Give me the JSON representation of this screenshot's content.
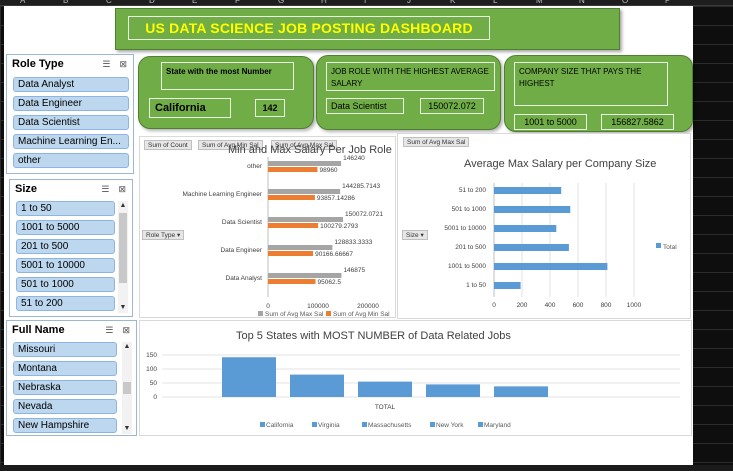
{
  "header": {
    "title": "US DATA SCIENCE JOB POSTING DASHBOARD"
  },
  "spreadsheet": {
    "columns": [
      "A",
      "B",
      "C",
      "D",
      "E",
      "F",
      "G",
      "H",
      "I",
      "J",
      "K",
      "L",
      "M",
      "N",
      "O",
      "P"
    ]
  },
  "kpis": {
    "state": {
      "label": "State with the most Number",
      "name": "California",
      "value": "142"
    },
    "role": {
      "label": "JOB ROLE WITH THE HIGHEST AVERAGE SALARY",
      "name": "Data Scientist",
      "value": "150072.072"
    },
    "company": {
      "label": "COMPANY SIZE THAT PAYS THE HIGHEST",
      "name": "1001 to 5000",
      "value": "156827.5862"
    }
  },
  "slicers": {
    "role_type": {
      "title": "Role Type",
      "items": [
        "Data Analyst",
        "Data Engineer",
        "Data Scientist",
        "Machine Learning En...",
        "other"
      ]
    },
    "size": {
      "title": "Size",
      "items": [
        "1 to 50",
        "1001 to 5000",
        "201 to 500",
        "5001 to 10000",
        "501 to 1000",
        "51 to 200"
      ]
    },
    "full_name": {
      "title": "Full Name",
      "items": [
        "Missouri",
        "Montana",
        "Nebraska",
        "Nevada",
        "New Hampshire"
      ]
    }
  },
  "chart_data": [
    {
      "type": "bar",
      "title": "Min and Max Salary Per Job Role",
      "field_buttons": [
        "Sum of Count",
        "Sum of Avg Min Sal",
        "Sum of Avg Max Sal"
      ],
      "axis_button": "Role Type",
      "categories": [
        "other",
        "Machine Learning Engineer",
        "Data Scientist",
        "Data Engineer",
        "Data Analyst"
      ],
      "series": [
        {
          "name": "Sum of Avg Max Sal",
          "color": "#a5a5a5",
          "values": [
            146240,
            144285.7143,
            150072.0721,
            128833.3333,
            146875
          ]
        },
        {
          "name": "Sum of Avg Min Sal",
          "color": "#ed7d31",
          "values": [
            98960,
            93857.14286,
            100279.2793,
            90166.66667,
            95062.5
          ]
        }
      ],
      "data_labels_max": [
        "146240",
        "144285.7143",
        "150072.0721",
        "128833.3333",
        "146875"
      ],
      "data_labels_min": [
        "98960",
        "93857.14286",
        "100279.2793",
        "90166.66667",
        "95062.5"
      ],
      "x_ticks": [
        "0",
        "100000",
        "200000"
      ],
      "xlim": [
        0,
        200000
      ]
    },
    {
      "type": "bar",
      "title": "Average Max Salary per Company Size",
      "field_buttons": [
        "Sum of Avg Max Sal"
      ],
      "axis_button": "Size",
      "categories": [
        "51 to 200",
        "501 to 1000",
        "5001 to 10000",
        "201 to 500",
        "1001 to 5000",
        "1 to 50"
      ],
      "series": [
        {
          "name": "Total",
          "color": "#5b9bd5",
          "values": [
            480,
            545,
            445,
            535,
            810,
            190
          ]
        }
      ],
      "x_ticks": [
        "0",
        "200",
        "400",
        "600",
        "800",
        "1000"
      ],
      "xlim": [
        0,
        1000
      ]
    },
    {
      "type": "bar",
      "title": "Top 5 States with MOST NUMBER of Data Related Jobs",
      "categories": [
        "TOTAL"
      ],
      "series": [
        {
          "name": "California",
          "color": "#5b9bd5",
          "values": [
            142
          ]
        },
        {
          "name": "Virginia",
          "color": "#5b9bd5",
          "values": [
            80
          ]
        },
        {
          "name": "Massachusetts",
          "color": "#5b9bd5",
          "values": [
            55
          ]
        },
        {
          "name": "New York",
          "color": "#5b9bd5",
          "values": [
            45
          ]
        },
        {
          "name": "Maryland",
          "color": "#5b9bd5",
          "values": [
            38
          ]
        }
      ],
      "y_ticks": [
        "0",
        "50",
        "100",
        "150"
      ],
      "ylim": [
        0,
        150
      ]
    }
  ],
  "colors": {
    "accent_green": "#70ad47",
    "title_text": "#ffff00",
    "slicer_item": "#bdd7ee",
    "bar_blue": "#5b9bd5",
    "bar_gray": "#a5a5a5",
    "bar_orange": "#ed7d31"
  }
}
